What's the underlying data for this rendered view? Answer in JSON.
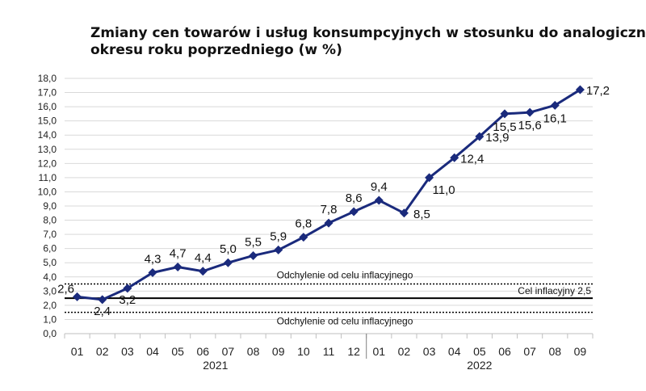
{
  "chart_data": {
    "type": "line",
    "title": "Zmiany cen towarów i usług konsumpcyjnych w stosunku do analogicznego",
    "title_line2": "okresu roku poprzedniego (w %)",
    "xlabel": "",
    "ylabel": "",
    "ylim": [
      0,
      18
    ],
    "yticks": [
      "0,0",
      "1,0",
      "2,0",
      "3,0",
      "4,0",
      "5,0",
      "6,0",
      "7,0",
      "8,0",
      "9,0",
      "10,0",
      "11,0",
      "12,0",
      "13,0",
      "14,0",
      "15,0",
      "16,0",
      "17,0",
      "18,0"
    ],
    "grid": true,
    "legend": "none",
    "categories": [
      "01",
      "02",
      "03",
      "04",
      "05",
      "06",
      "07",
      "08",
      "09",
      "10",
      "11",
      "12",
      "01",
      "02",
      "03",
      "04",
      "05",
      "06",
      "07",
      "08",
      "09"
    ],
    "years": [
      {
        "label": "2021",
        "start": 0,
        "end": 11
      },
      {
        "label": "2022",
        "start": 12,
        "end": 20
      }
    ],
    "series": [
      {
        "values": [
          2.6,
          2.4,
          3.2,
          4.3,
          4.7,
          4.4,
          5.0,
          5.5,
          5.9,
          6.8,
          7.8,
          8.6,
          9.4,
          8.5,
          11.0,
          12.4,
          13.9,
          15.5,
          15.6,
          16.1,
          17.2
        ],
        "labels": [
          "2,6",
          "2,4",
          "3,2",
          "4,3",
          "4,7",
          "4,4",
          "5,0",
          "5,5",
          "5,9",
          "6,8",
          "7,8",
          "8,6",
          "9,4",
          "8,5",
          "11,0",
          "12,4",
          "13,9",
          "15,5",
          "15,6",
          "16,1",
          "17,2"
        ],
        "color": "#1a2a7c"
      }
    ],
    "reference_lines": [
      {
        "value": 3.5,
        "style": "dotted",
        "label": "Odchylenie od celu inflacyjnego"
      },
      {
        "value": 2.5,
        "style": "solid",
        "label": "Cel inflacyjny 2,5"
      },
      {
        "value": 1.5,
        "style": "dotted",
        "label": "Odchylenie od celu inflacyjnego"
      }
    ]
  }
}
